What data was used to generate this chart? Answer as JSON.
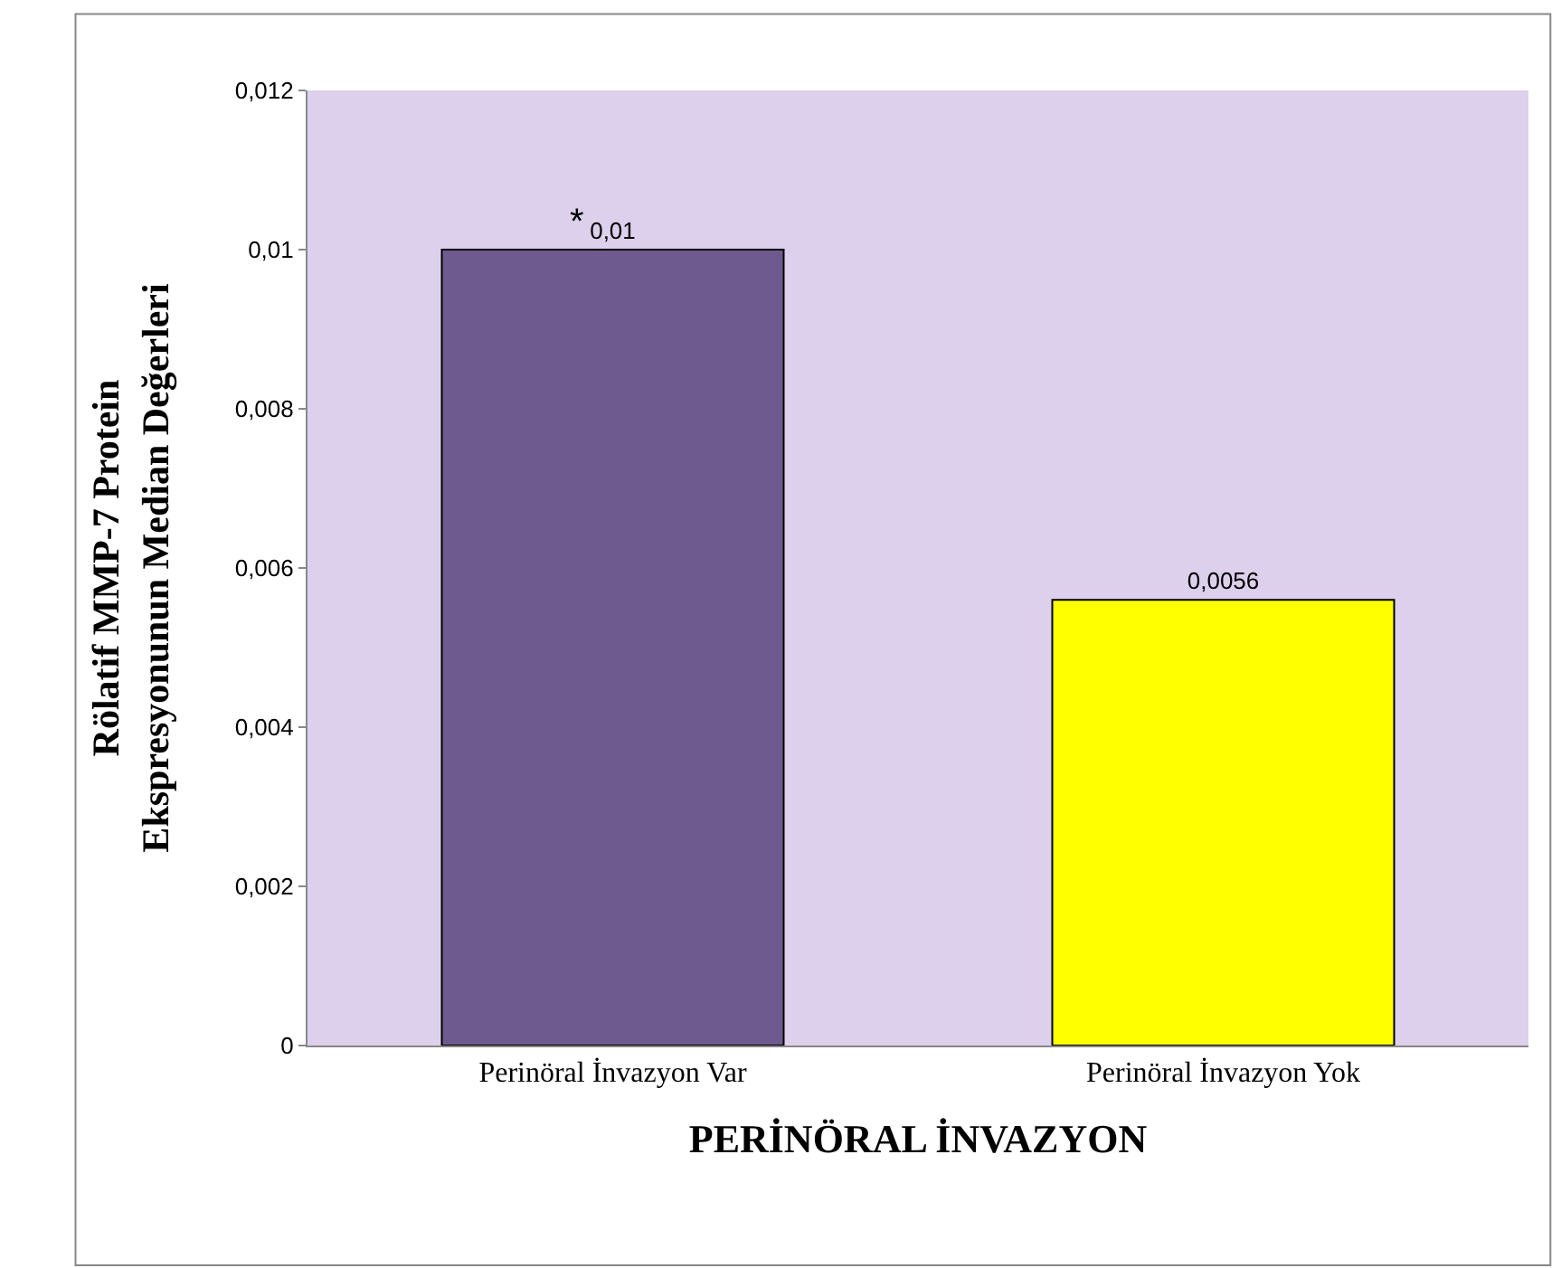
{
  "chart_data": {
    "type": "bar",
    "xlabel": "PERİNÖRAL İNVAZYON",
    "ylabel": "Rölatif MMP-7 Protein\nEkspresyonunun Median Değerleri",
    "categories": [
      "Perinöral İnvazyon Var",
      "Perinöral İnvazyon Yok"
    ],
    "values": [
      0.01,
      0.0056
    ],
    "colors": [
      "#6f5a8f",
      "#ffff00"
    ],
    "value_labels": [
      "0,01",
      "0,0056"
    ],
    "annotations": [
      {
        "text": "*",
        "x": "Perinöral İnvazyon Var",
        "y": 0.01
      }
    ],
    "ylim": [
      0,
      0.012
    ],
    "yticks": [
      0,
      {
        "value": 0.002,
        "label": "0,002"
      },
      {
        "value": 0.004,
        "label": "0,004"
      },
      {
        "value": 0.006,
        "label": "0,006"
      },
      {
        "value": 0.008,
        "label": "0,008"
      },
      {
        "value": 0.01,
        "label": "0,01"
      },
      {
        "value": 0.012,
        "label": "0,012"
      }
    ],
    "grid": false,
    "legend": false
  }
}
